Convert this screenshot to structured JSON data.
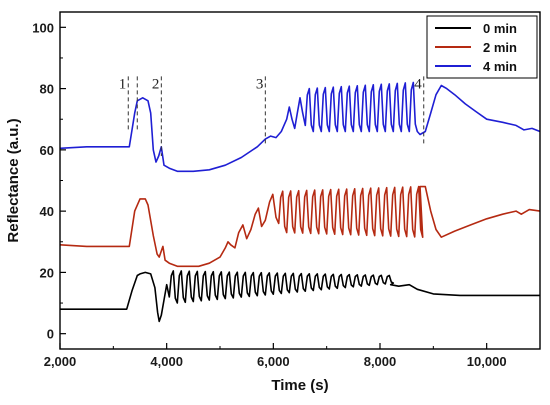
{
  "chart_data": {
    "type": "line",
    "title": "",
    "xlabel": "Time (s)",
    "ylabel": "Reflectance (a.u.)",
    "xlim": [
      2000,
      11000
    ],
    "ylim": [
      -5,
      105
    ],
    "xticks": [
      2000,
      4000,
      6000,
      8000,
      10000
    ],
    "xtick_labels": [
      "2,000",
      "4,000",
      "6,000",
      "8,000",
      "10,000"
    ],
    "yticks": [
      0,
      20,
      40,
      60,
      80,
      100
    ],
    "ytick_labels": [
      "0",
      "20",
      "40",
      "60",
      "80",
      "100"
    ],
    "legend_position": "top-right",
    "series": [
      {
        "name": "0 min",
        "color": "#000000",
        "points": [
          [
            2000,
            8
          ],
          [
            2500,
            8
          ],
          [
            3000,
            8
          ],
          [
            3250,
            8
          ],
          [
            3350,
            14
          ],
          [
            3450,
            19
          ],
          [
            3500,
            19.5
          ],
          [
            3600,
            20
          ],
          [
            3700,
            19.5
          ],
          [
            3780,
            15
          ],
          [
            3830,
            7
          ],
          [
            3860,
            4
          ],
          [
            3900,
            6
          ],
          [
            3950,
            11
          ],
          [
            4000,
            16
          ],
          [
            4050,
            12
          ]
        ],
        "oscillation": {
          "start": 4050,
          "end": 8200,
          "period": 150,
          "hi_start": 20.5,
          "hi_end": 19,
          "lo_start": 10,
          "lo_end": 16.5
        },
        "tail": [
          [
            8200,
            16
          ],
          [
            8350,
            15.5
          ],
          [
            8550,
            16
          ],
          [
            8700,
            14.5
          ],
          [
            9000,
            13
          ],
          [
            9500,
            12.5
          ],
          [
            10000,
            12.5
          ],
          [
            10500,
            12.5
          ],
          [
            11000,
            12.5
          ]
        ]
      },
      {
        "name": "2 min",
        "color": "#b52a12",
        "points": [
          [
            2000,
            29
          ],
          [
            2500,
            28.5
          ],
          [
            3000,
            28.5
          ],
          [
            3300,
            28.5
          ],
          [
            3400,
            40
          ],
          [
            3500,
            44
          ],
          [
            3600,
            44
          ],
          [
            3650,
            42
          ],
          [
            3750,
            32
          ],
          [
            3820,
            26
          ],
          [
            3860,
            25
          ],
          [
            3900,
            27
          ],
          [
            3930,
            28.5
          ],
          [
            3970,
            24
          ],
          [
            4050,
            23
          ],
          [
            4200,
            22
          ],
          [
            4400,
            22
          ],
          [
            4600,
            22
          ],
          [
            4800,
            23
          ],
          [
            5000,
            25
          ],
          [
            5100,
            28
          ],
          [
            5150,
            30
          ],
          [
            5200,
            29
          ],
          [
            5280,
            28
          ],
          [
            5350,
            33
          ],
          [
            5430,
            35.5
          ],
          [
            5500,
            31
          ],
          [
            5580,
            34
          ],
          [
            5660,
            39
          ],
          [
            5720,
            41
          ],
          [
            5780,
            35
          ],
          [
            5850,
            37
          ],
          [
            5930,
            43
          ],
          [
            5990,
            45.5
          ],
          [
            6050,
            38
          ],
          [
            6100,
            36
          ]
        ],
        "oscillation": {
          "start": 6100,
          "end": 8750,
          "period": 150,
          "hi_start": 46.5,
          "hi_end": 48,
          "lo_start": 33,
          "lo_end": 31.5
        },
        "tail": [
          [
            8750,
            48
          ],
          [
            8850,
            48
          ],
          [
            8950,
            40
          ],
          [
            9050,
            34
          ],
          [
            9150,
            31.5
          ],
          [
            9400,
            33.5
          ],
          [
            9700,
            35.5
          ],
          [
            10000,
            37.5
          ],
          [
            10300,
            39
          ],
          [
            10550,
            40
          ],
          [
            10650,
            39
          ],
          [
            10800,
            40.5
          ],
          [
            11000,
            40
          ]
        ]
      },
      {
        "name": "4 min",
        "color": "#1f1fd4",
        "points": [
          [
            2000,
            60.5
          ],
          [
            2500,
            61
          ],
          [
            3000,
            61
          ],
          [
            3300,
            61
          ],
          [
            3400,
            72
          ],
          [
            3450,
            76
          ],
          [
            3550,
            77
          ],
          [
            3650,
            76
          ],
          [
            3700,
            72
          ],
          [
            3750,
            60
          ],
          [
            3800,
            56
          ],
          [
            3850,
            58
          ],
          [
            3900,
            61
          ],
          [
            3950,
            55
          ],
          [
            4050,
            54
          ],
          [
            4200,
            53
          ],
          [
            4500,
            53
          ],
          [
            4800,
            53.5
          ],
          [
            5100,
            55
          ],
          [
            5400,
            57.5
          ],
          [
            5700,
            61
          ],
          [
            5850,
            63.5
          ],
          [
            5950,
            64.5
          ],
          [
            6050,
            64
          ],
          [
            6150,
            66
          ],
          [
            6250,
            70
          ],
          [
            6300,
            74
          ],
          [
            6350,
            70
          ],
          [
            6400,
            67
          ],
          [
            6450,
            72
          ],
          [
            6500,
            77
          ],
          [
            6550,
            72
          ],
          [
            6600,
            68
          ]
        ],
        "oscillation": {
          "start": 6600,
          "end": 8750,
          "period": 150,
          "hi_start": 80,
          "hi_end": 82,
          "lo_start": 66,
          "lo_end": 66
        },
        "tail": [
          [
            8750,
            65
          ],
          [
            8850,
            66
          ],
          [
            8950,
            72
          ],
          [
            9050,
            78
          ],
          [
            9150,
            81
          ],
          [
            9250,
            80
          ],
          [
            9400,
            78
          ],
          [
            9600,
            75
          ],
          [
            9800,
            72.5
          ],
          [
            10000,
            70
          ],
          [
            10300,
            69
          ],
          [
            10550,
            68
          ],
          [
            10700,
            66.5
          ],
          [
            10850,
            67
          ],
          [
            11000,
            66
          ]
        ]
      }
    ],
    "markers": [
      {
        "label": "1",
        "x": 3280
      },
      {
        "label": "2",
        "x": 3900
      },
      {
        "label": "3",
        "x": 5850
      },
      {
        "label": "4",
        "x": 8820
      }
    ]
  }
}
